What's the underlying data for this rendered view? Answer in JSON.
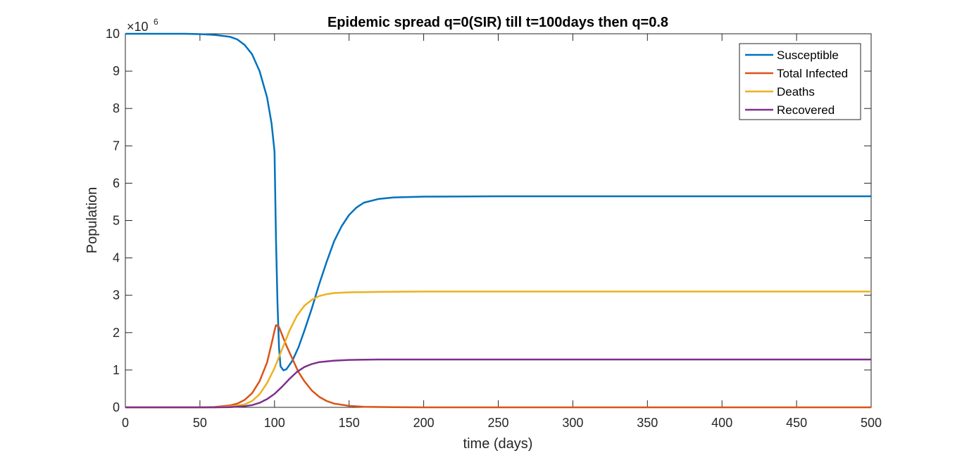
{
  "chart_data": {
    "type": "line",
    "title": "Epidemic spread q=0(SIR) till t=100days then q=0.8",
    "xlabel": "time (days)",
    "ylabel": "Population",
    "y_multiplier": {
      "base": "×10",
      "exponent": "6"
    },
    "xlim": [
      0,
      500
    ],
    "ylim": [
      0,
      10
    ],
    "x_ticks": [
      0,
      50,
      100,
      150,
      200,
      250,
      300,
      350,
      400,
      450,
      500
    ],
    "y_ticks": [
      0,
      1,
      2,
      3,
      4,
      5,
      6,
      7,
      8,
      9,
      10
    ],
    "grid": false,
    "legend_position": "top-right",
    "series": [
      {
        "name": "Susceptible",
        "color": "#0072BD",
        "points": [
          [
            0,
            10
          ],
          [
            40,
            10
          ],
          [
            50,
            9.99
          ],
          [
            60,
            9.97
          ],
          [
            70,
            9.92
          ],
          [
            75,
            9.85
          ],
          [
            80,
            9.7
          ],
          [
            85,
            9.45
          ],
          [
            90,
            9.0
          ],
          [
            95,
            8.3
          ],
          [
            98,
            7.6
          ],
          [
            100,
            6.85
          ],
          [
            101,
            4.5
          ],
          [
            102,
            2.8
          ],
          [
            103,
            1.6
          ],
          [
            104,
            1.1
          ],
          [
            106,
            0.99
          ],
          [
            108,
            1.02
          ],
          [
            112,
            1.25
          ],
          [
            116,
            1.6
          ],
          [
            120,
            2.05
          ],
          [
            125,
            2.65
          ],
          [
            130,
            3.3
          ],
          [
            135,
            3.9
          ],
          [
            140,
            4.45
          ],
          [
            145,
            4.85
          ],
          [
            150,
            5.15
          ],
          [
            155,
            5.35
          ],
          [
            160,
            5.48
          ],
          [
            170,
            5.58
          ],
          [
            180,
            5.62
          ],
          [
            200,
            5.64
          ],
          [
            250,
            5.65
          ],
          [
            500,
            5.65
          ]
        ]
      },
      {
        "name": "Total Infected",
        "color": "#D95319",
        "points": [
          [
            0,
            0
          ],
          [
            50,
            0.0
          ],
          [
            60,
            0.01
          ],
          [
            70,
            0.05
          ],
          [
            75,
            0.1
          ],
          [
            80,
            0.2
          ],
          [
            85,
            0.38
          ],
          [
            90,
            0.7
          ],
          [
            95,
            1.2
          ],
          [
            98,
            1.7
          ],
          [
            100,
            2.05
          ],
          [
            101,
            2.2
          ],
          [
            103,
            2.15
          ],
          [
            105,
            1.95
          ],
          [
            108,
            1.65
          ],
          [
            112,
            1.3
          ],
          [
            116,
            0.95
          ],
          [
            120,
            0.7
          ],
          [
            125,
            0.45
          ],
          [
            130,
            0.28
          ],
          [
            135,
            0.17
          ],
          [
            140,
            0.1
          ],
          [
            150,
            0.04
          ],
          [
            160,
            0.015
          ],
          [
            180,
            0.005
          ],
          [
            200,
            0.0
          ],
          [
            500,
            0.0
          ]
        ]
      },
      {
        "name": "Deaths",
        "color": "#EDB120",
        "points": [
          [
            0,
            0
          ],
          [
            60,
            0.0
          ],
          [
            70,
            0.02
          ],
          [
            80,
            0.08
          ],
          [
            85,
            0.17
          ],
          [
            90,
            0.35
          ],
          [
            95,
            0.65
          ],
          [
            100,
            1.05
          ],
          [
            105,
            1.55
          ],
          [
            110,
            2.05
          ],
          [
            115,
            2.45
          ],
          [
            120,
            2.72
          ],
          [
            125,
            2.88
          ],
          [
            130,
            2.98
          ],
          [
            135,
            3.03
          ],
          [
            140,
            3.06
          ],
          [
            150,
            3.08
          ],
          [
            170,
            3.09
          ],
          [
            200,
            3.1
          ],
          [
            500,
            3.1
          ]
        ]
      },
      {
        "name": "Recovered",
        "color": "#7E2F8E",
        "points": [
          [
            0,
            0
          ],
          [
            60,
            0.0
          ],
          [
            70,
            0.005
          ],
          [
            80,
            0.03
          ],
          [
            85,
            0.06
          ],
          [
            90,
            0.12
          ],
          [
            95,
            0.22
          ],
          [
            100,
            0.36
          ],
          [
            105,
            0.55
          ],
          [
            110,
            0.76
          ],
          [
            115,
            0.95
          ],
          [
            120,
            1.08
          ],
          [
            125,
            1.16
          ],
          [
            130,
            1.21
          ],
          [
            140,
            1.25
          ],
          [
            150,
            1.27
          ],
          [
            170,
            1.28
          ],
          [
            500,
            1.28
          ]
        ]
      }
    ]
  }
}
